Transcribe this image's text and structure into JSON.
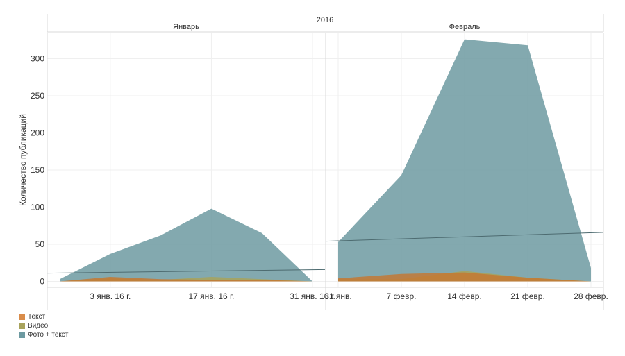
{
  "chart_data": {
    "type": "area",
    "year_label": "2016",
    "ylabel": "Количество публикаций",
    "ylim": [
      -8,
      335
    ],
    "yticks": [
      0,
      50,
      100,
      150,
      200,
      250,
      300
    ],
    "grid": true,
    "legend_position": "bottom-left",
    "panels": [
      {
        "name": "Январь",
        "x_ticks": [
          {
            "label": "3 янв. 16 г.",
            "x": 1
          },
          {
            "label": "17 янв. 16 г.",
            "x": 3
          },
          {
            "label": "31 янв. 16 г.",
            "x": 5
          }
        ],
        "x": [
          0,
          1,
          2,
          3,
          4,
          5
        ],
        "series": [
          {
            "name": "Фото + текст",
            "values": [
              3,
              37,
              62,
              98,
              65,
              0
            ]
          },
          {
            "name": "Видео",
            "values": [
              0,
              4,
              2,
              6,
              3,
              0
            ]
          },
          {
            "name": "Текст",
            "values": [
              0,
              6,
              3,
              2,
              2,
              0
            ]
          }
        ],
        "trend": [
          11,
          16
        ]
      },
      {
        "name": "Февраль",
        "x_ticks": [
          {
            "label": "31 янв.",
            "x": 0
          },
          {
            "label": "7 февр.",
            "x": 1
          },
          {
            "label": "14 февр.",
            "x": 2
          },
          {
            "label": "21 февр.",
            "x": 3
          },
          {
            "label": "28 февр.",
            "x": 4
          }
        ],
        "x": [
          0,
          1,
          2,
          3,
          4
        ],
        "series": [
          {
            "name": "Фото + текст",
            "values": [
              53,
              143,
              326,
              318,
              18
            ]
          },
          {
            "name": "Видео",
            "values": [
              3,
              3,
              14,
              5,
              0
            ]
          },
          {
            "name": "Текст",
            "values": [
              4,
              10,
              12,
              5,
              0
            ]
          }
        ],
        "trend": [
          54,
          66
        ]
      }
    ],
    "legend": [
      {
        "name": "Текст",
        "color": "#d98c4a"
      },
      {
        "name": "Видео",
        "color": "#a8a35c"
      },
      {
        "name": "Фото + текст",
        "color": "#6d9aa1"
      }
    ],
    "colors": {
      "Фото + текст": "#6d9aa1",
      "Видео": "#a8a35c",
      "Текст": "#c7762e",
      "trend": "#4d6b70"
    }
  }
}
